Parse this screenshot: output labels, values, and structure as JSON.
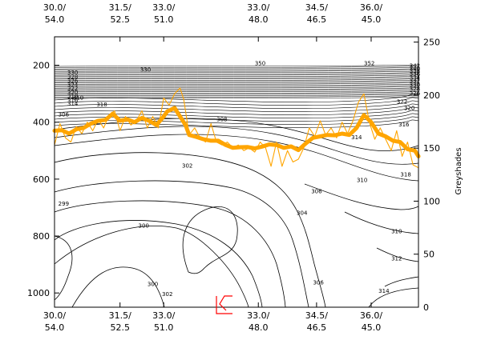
{
  "chart_data": {
    "type": "line",
    "x_axis": {
      "tick_labels": [
        {
          "top": "30.0/",
          "bottom": "54.0"
        },
        {
          "top": "31.5/",
          "bottom": "52.5"
        },
        {
          "top": "33.0/",
          "bottom": "51.0"
        },
        {
          "top": "33.0/",
          "bottom": "48.0"
        },
        {
          "top": "34.5/",
          "bottom": "46.5"
        },
        {
          "top": "36.0/",
          "bottom": "45.0"
        }
      ]
    },
    "left_axis": {
      "range": [
        1050,
        100
      ],
      "ticks": [
        200,
        400,
        600,
        800,
        1000
      ],
      "inverted": true
    },
    "right_axis": {
      "label": "Greyshades",
      "range": [
        0,
        255
      ],
      "ticks": [
        0,
        50,
        100,
        150,
        200,
        250
      ]
    },
    "contour_labels": [
      {
        "text": "330",
        "x": 0.05,
        "p": 232
      },
      {
        "text": "328",
        "x": 0.05,
        "p": 248
      },
      {
        "text": "326",
        "x": 0.05,
        "p": 262
      },
      {
        "text": "324",
        "x": 0.05,
        "p": 275
      },
      {
        "text": "322",
        "x": 0.05,
        "p": 289
      },
      {
        "text": "320",
        "x": 0.05,
        "p": 302
      },
      {
        "text": "318",
        "x": 0.05,
        "p": 315
      },
      {
        "text": "316",
        "x": 0.05,
        "p": 330
      },
      {
        "text": "314",
        "x": 0.05,
        "p": 342
      },
      {
        "text": "310",
        "x": 0.065,
        "p": 320
      },
      {
        "text": "318",
        "x": 0.13,
        "p": 345
      },
      {
        "text": "306",
        "x": 0.025,
        "p": 380
      },
      {
        "text": "330",
        "x": 0.25,
        "p": 222
      },
      {
        "text": "350",
        "x": 0.565,
        "p": 200
      },
      {
        "text": "352",
        "x": 0.865,
        "p": 200
      },
      {
        "text": "308",
        "x": 0.46,
        "p": 397
      },
      {
        "text": "302",
        "x": 0.365,
        "p": 560
      },
      {
        "text": "299",
        "x": 0.025,
        "p": 693
      },
      {
        "text": "300",
        "x": 0.245,
        "p": 770
      },
      {
        "text": "300",
        "x": 0.27,
        "p": 975
      },
      {
        "text": "302",
        "x": 0.31,
        "p": 1010
      },
      {
        "text": "306",
        "x": 0.72,
        "p": 650
      },
      {
        "text": "304",
        "x": 0.68,
        "p": 725
      },
      {
        "text": "306",
        "x": 0.725,
        "p": 970
      },
      {
        "text": "310",
        "x": 0.845,
        "p": 610
      },
      {
        "text": "310",
        "x": 0.94,
        "p": 790
      },
      {
        "text": "312",
        "x": 0.94,
        "p": 885
      },
      {
        "text": "314",
        "x": 0.905,
        "p": 1000
      },
      {
        "text": "314",
        "x": 0.83,
        "p": 460
      },
      {
        "text": "316",
        "x": 0.96,
        "p": 415
      },
      {
        "text": "318",
        "x": 0.965,
        "p": 590
      },
      {
        "text": "320",
        "x": 0.975,
        "p": 357
      },
      {
        "text": "322",
        "x": 0.955,
        "p": 335
      },
      {
        "text": "326",
        "x": 0.99,
        "p": 305
      },
      {
        "text": "328",
        "x": 0.99,
        "p": 290
      },
      {
        "text": "330",
        "x": 0.99,
        "p": 275
      },
      {
        "text": "332",
        "x": 0.99,
        "p": 262
      },
      {
        "text": "334",
        "x": 0.99,
        "p": 250
      },
      {
        "text": "336",
        "x": 0.99,
        "p": 238
      },
      {
        "text": "338",
        "x": 0.99,
        "p": 228
      },
      {
        "text": "340",
        "x": 0.99,
        "p": 218
      },
      {
        "text": "342",
        "x": 0.99,
        "p": 208
      }
    ],
    "series": [
      {
        "style": "thick",
        "color": "#ffa500",
        "axis": "left",
        "points": [
          {
            "x": 0.0,
            "p": 430
          },
          {
            "x": 0.02,
            "p": 428
          },
          {
            "x": 0.04,
            "p": 440
          },
          {
            "x": 0.06,
            "p": 425
          },
          {
            "x": 0.08,
            "p": 420
          },
          {
            "x": 0.1,
            "p": 405
          },
          {
            "x": 0.12,
            "p": 395
          },
          {
            "x": 0.14,
            "p": 392
          },
          {
            "x": 0.16,
            "p": 370
          },
          {
            "x": 0.18,
            "p": 395
          },
          {
            "x": 0.2,
            "p": 390
          },
          {
            "x": 0.22,
            "p": 400
          },
          {
            "x": 0.24,
            "p": 385
          },
          {
            "x": 0.26,
            "p": 395
          },
          {
            "x": 0.28,
            "p": 410
          },
          {
            "x": 0.3,
            "p": 380
          },
          {
            "x": 0.31,
            "p": 362
          },
          {
            "x": 0.33,
            "p": 350
          },
          {
            "x": 0.35,
            "p": 390
          },
          {
            "x": 0.36,
            "p": 410
          },
          {
            "x": 0.37,
            "p": 445
          },
          {
            "x": 0.39,
            "p": 452
          },
          {
            "x": 0.41,
            "p": 460
          },
          {
            "x": 0.43,
            "p": 465
          },
          {
            "x": 0.45,
            "p": 465
          },
          {
            "x": 0.47,
            "p": 480
          },
          {
            "x": 0.49,
            "p": 490
          },
          {
            "x": 0.51,
            "p": 488
          },
          {
            "x": 0.53,
            "p": 487
          },
          {
            "x": 0.55,
            "p": 492
          },
          {
            "x": 0.57,
            "p": 486
          },
          {
            "x": 0.59,
            "p": 478
          },
          {
            "x": 0.61,
            "p": 480
          },
          {
            "x": 0.63,
            "p": 490
          },
          {
            "x": 0.65,
            "p": 485
          },
          {
            "x": 0.67,
            "p": 498
          },
          {
            "x": 0.69,
            "p": 475
          },
          {
            "x": 0.71,
            "p": 455
          },
          {
            "x": 0.73,
            "p": 450
          },
          {
            "x": 0.75,
            "p": 445
          },
          {
            "x": 0.77,
            "p": 446
          },
          {
            "x": 0.79,
            "p": 440
          },
          {
            "x": 0.81,
            "p": 445
          },
          {
            "x": 0.83,
            "p": 420
          },
          {
            "x": 0.85,
            "p": 375
          },
          {
            "x": 0.87,
            "p": 400
          },
          {
            "x": 0.89,
            "p": 440
          },
          {
            "x": 0.91,
            "p": 450
          },
          {
            "x": 0.93,
            "p": 465
          },
          {
            "x": 0.95,
            "p": 470
          },
          {
            "x": 0.97,
            "p": 495
          },
          {
            "x": 0.99,
            "p": 500
          },
          {
            "x": 1.0,
            "p": 520
          }
        ]
      },
      {
        "style": "thin",
        "color": "#ffa500",
        "axis": "left",
        "points": [
          {
            "x": 0.0,
            "p": 480
          },
          {
            "x": 0.015,
            "p": 405
          },
          {
            "x": 0.03,
            "p": 455
          },
          {
            "x": 0.045,
            "p": 470
          },
          {
            "x": 0.06,
            "p": 415
          },
          {
            "x": 0.075,
            "p": 440
          },
          {
            "x": 0.09,
            "p": 400
          },
          {
            "x": 0.105,
            "p": 430
          },
          {
            "x": 0.12,
            "p": 390
          },
          {
            "x": 0.135,
            "p": 420
          },
          {
            "x": 0.15,
            "p": 375
          },
          {
            "x": 0.165,
            "p": 360
          },
          {
            "x": 0.18,
            "p": 430
          },
          {
            "x": 0.195,
            "p": 380
          },
          {
            "x": 0.21,
            "p": 410
          },
          {
            "x": 0.225,
            "p": 395
          },
          {
            "x": 0.24,
            "p": 360
          },
          {
            "x": 0.255,
            "p": 420
          },
          {
            "x": 0.27,
            "p": 380
          },
          {
            "x": 0.285,
            "p": 420
          },
          {
            "x": 0.3,
            "p": 315
          },
          {
            "x": 0.315,
            "p": 340
          },
          {
            "x": 0.33,
            "p": 300
          },
          {
            "x": 0.345,
            "p": 280
          },
          {
            "x": 0.355,
            "p": 320
          },
          {
            "x": 0.37,
            "p": 445
          },
          {
            "x": 0.385,
            "p": 420
          },
          {
            "x": 0.4,
            "p": 455
          },
          {
            "x": 0.415,
            "p": 470
          },
          {
            "x": 0.43,
            "p": 405
          },
          {
            "x": 0.445,
            "p": 470
          },
          {
            "x": 0.46,
            "p": 480
          },
          {
            "x": 0.475,
            "p": 470
          },
          {
            "x": 0.49,
            "p": 490
          },
          {
            "x": 0.505,
            "p": 480
          },
          {
            "x": 0.52,
            "p": 500
          },
          {
            "x": 0.535,
            "p": 490
          },
          {
            "x": 0.55,
            "p": 505
          },
          {
            "x": 0.565,
            "p": 470
          },
          {
            "x": 0.58,
            "p": 490
          },
          {
            "x": 0.595,
            "p": 555
          },
          {
            "x": 0.61,
            "p": 470
          },
          {
            "x": 0.625,
            "p": 555
          },
          {
            "x": 0.64,
            "p": 500
          },
          {
            "x": 0.655,
            "p": 540
          },
          {
            "x": 0.67,
            "p": 530
          },
          {
            "x": 0.685,
            "p": 490
          },
          {
            "x": 0.7,
            "p": 420
          },
          {
            "x": 0.715,
            "p": 450
          },
          {
            "x": 0.73,
            "p": 395
          },
          {
            "x": 0.745,
            "p": 445
          },
          {
            "x": 0.76,
            "p": 420
          },
          {
            "x": 0.775,
            "p": 455
          },
          {
            "x": 0.79,
            "p": 400
          },
          {
            "x": 0.805,
            "p": 440
          },
          {
            "x": 0.82,
            "p": 395
          },
          {
            "x": 0.835,
            "p": 330
          },
          {
            "x": 0.85,
            "p": 300
          },
          {
            "x": 0.865,
            "p": 400
          },
          {
            "x": 0.88,
            "p": 460
          },
          {
            "x": 0.895,
            "p": 420
          },
          {
            "x": 0.91,
            "p": 460
          },
          {
            "x": 0.925,
            "p": 500
          },
          {
            "x": 0.94,
            "p": 430
          },
          {
            "x": 0.955,
            "p": 520
          },
          {
            "x": 0.97,
            "p": 470
          },
          {
            "x": 0.985,
            "p": 550
          },
          {
            "x": 1.0,
            "p": 560
          }
        ]
      }
    ],
    "marker_color": "#ff0000",
    "grid": false,
    "legend": "none"
  }
}
